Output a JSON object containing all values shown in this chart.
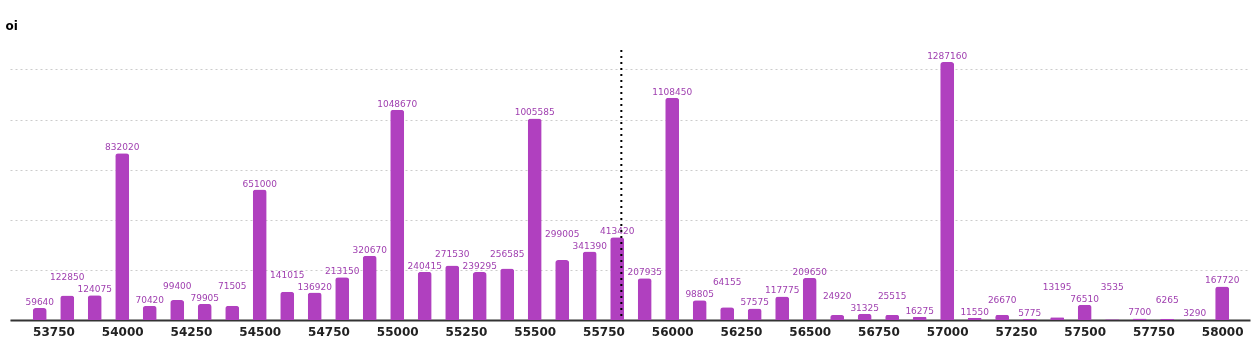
{
  "chart_data": {
    "type": "bar",
    "ylabel": "oi",
    "x": [
      53700,
      53800,
      53900,
      54000,
      54100,
      54200,
      54300,
      54400,
      54500,
      54600,
      54700,
      54800,
      54900,
      55000,
      55100,
      55200,
      55300,
      55400,
      55500,
      55600,
      55700,
      55800,
      55900,
      56000,
      56100,
      56200,
      56300,
      56400,
      56500,
      56600,
      56700,
      56800,
      56900,
      57000,
      57100,
      57200,
      57300,
      57400,
      57500,
      57600,
      57700,
      57800,
      57900,
      58000
    ],
    "values": [
      59640,
      122850,
      124075,
      832020,
      70420,
      99400,
      79905,
      71505,
      651000,
      141015,
      136920,
      213150,
      320670,
      1048670,
      240415,
      271530,
      239295,
      256585,
      1005585,
      299005,
      341390,
      413420,
      207935,
      1108450,
      98805,
      64155,
      57575,
      117775,
      209650,
      24920,
      31325,
      25515,
      16275,
      1287160,
      11550,
      26670,
      5775,
      13195,
      76510,
      3535,
      7700,
      6265,
      3290,
      167720
    ],
    "color": "#b040bf",
    "data_labels": true,
    "xlim": [
      53610,
      58083
    ],
    "xticks": [
      53750,
      54000,
      54250,
      54500,
      54750,
      55000,
      55250,
      55500,
      55750,
      56000,
      56250,
      56500,
      56750,
      57000,
      57250,
      57500,
      57750,
      58000
    ],
    "yticks": [
      {
        "value": 0,
        "label": null
      },
      {
        "value": 250000,
        "label": null
      },
      {
        "value": 500000,
        "label": null
      },
      {
        "value": 750000,
        "label": null
      },
      {
        "value": 1000000,
        "label": null
      },
      {
        "value": 1250000,
        "label": null
      }
    ],
    "tick_labels": "x",
    "grid": "y",
    "ref_lines": [
      {
        "axis": "x",
        "value": 55815,
        "color": "#000000",
        "line_style": "dotted"
      }
    ]
  }
}
